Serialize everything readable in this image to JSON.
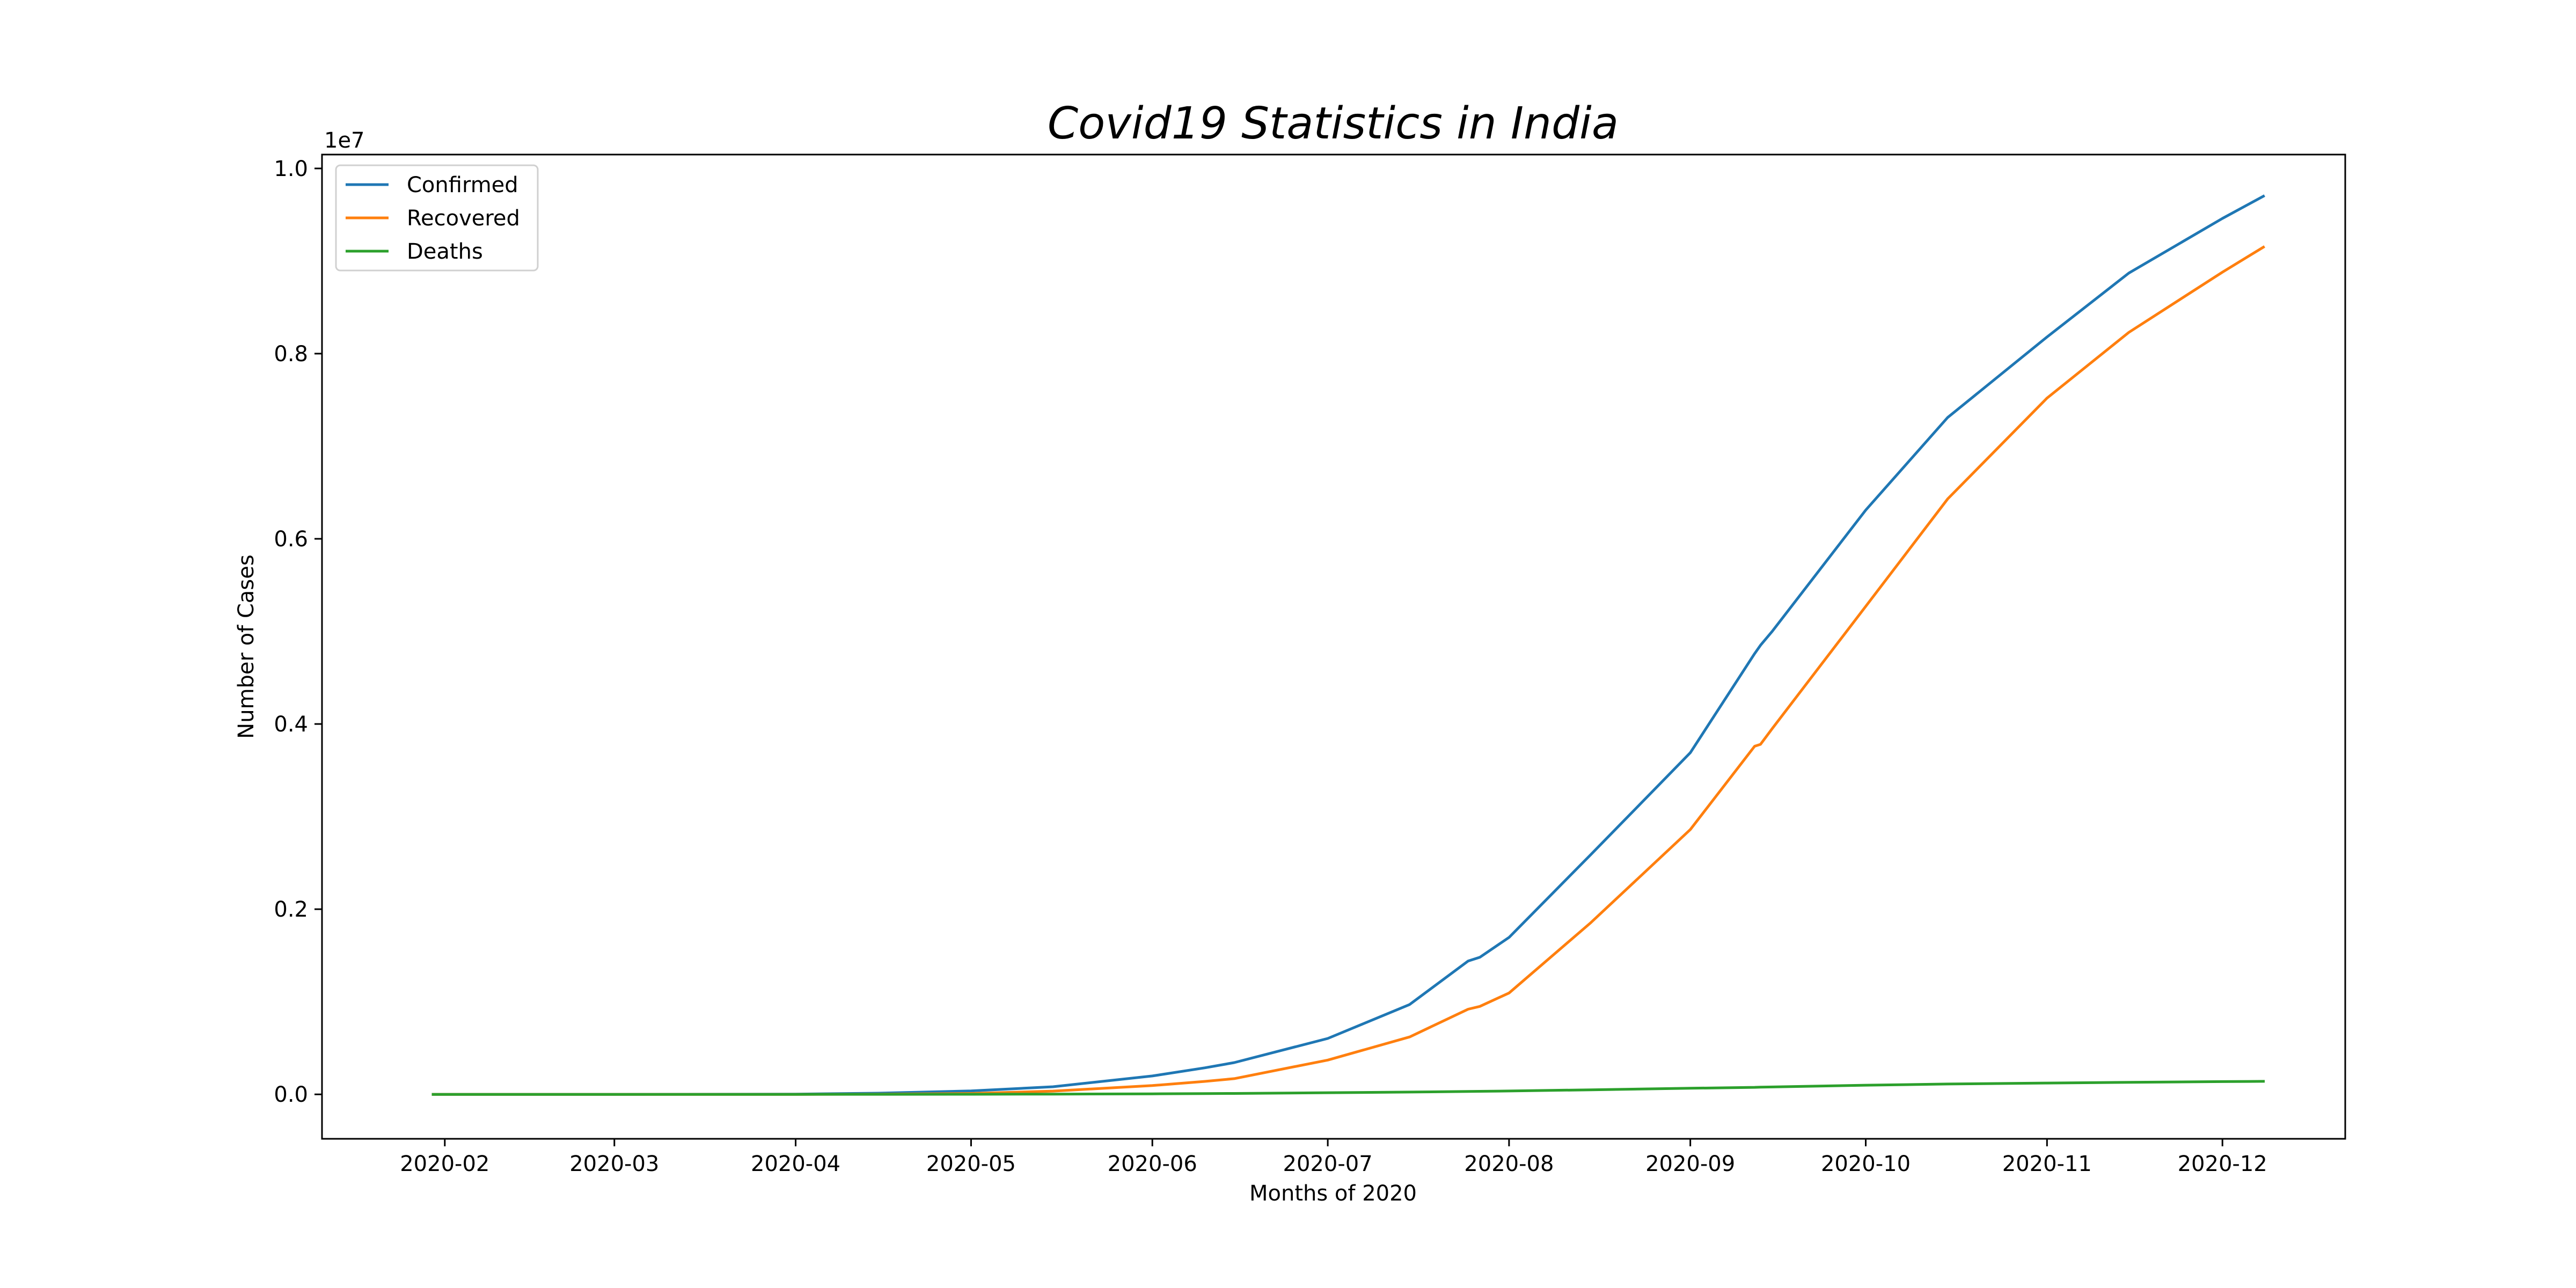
{
  "chart_data": {
    "type": "line",
    "title": "Covid19 Statistics in India",
    "xlabel": "Months of 2020",
    "ylabel": "Number of Cases",
    "y_offset_label": "1e7",
    "y_scale": 10000000,
    "x_tick_labels": [
      "2020-02",
      "2020-03",
      "2020-04",
      "2020-05",
      "2020-06",
      "2020-07",
      "2020-08",
      "2020-09",
      "2020-10",
      "2020-11",
      "2020-12"
    ],
    "x_ticks": [
      "2020-02-01",
      "2020-03-01",
      "2020-04-01",
      "2020-05-01",
      "2020-06-01",
      "2020-07-01",
      "2020-08-01",
      "2020-09-01",
      "2020-10-01",
      "2020-11-01",
      "2020-12-01"
    ],
    "y_tick_labels": [
      "0.0",
      "0.2",
      "0.4",
      "0.6",
      "0.8",
      "1.0"
    ],
    "y_ticks": [
      0,
      2000000,
      4000000,
      6000000,
      8000000,
      10000000
    ],
    "xlim": [
      "2020-01-11",
      "2020-12-22"
    ],
    "ylim": [
      -480000,
      10150000
    ],
    "grid": false,
    "legend_position": "top-left",
    "x": [
      "2020-01-30",
      "2020-03-01",
      "2020-04-01",
      "2020-04-15",
      "2020-05-01",
      "2020-05-15",
      "2020-06-01",
      "2020-06-10",
      "2020-06-15",
      "2020-07-01",
      "2020-07-15",
      "2020-07-25",
      "2020-07-27",
      "2020-08-01",
      "2020-08-15",
      "2020-09-01",
      "2020-09-12",
      "2020-09-13",
      "2020-09-15",
      "2020-10-01",
      "2020-10-15",
      "2020-11-01",
      "2020-11-15",
      "2020-12-01",
      "2020-12-08"
    ],
    "series": [
      {
        "name": "Confirmed",
        "color": "#1f77b4",
        "values": [
          1,
          3,
          1998,
          12380,
          37257,
          82000,
          198706,
          287000,
          343000,
          604000,
          970000,
          1440000,
          1480000,
          1695000,
          2590000,
          3690000,
          4760000,
          4850000,
          5000000,
          6310000,
          7310000,
          8180000,
          8870000,
          9460000,
          9700000
        ]
      },
      {
        "name": "Recovered",
        "color": "#ff7f0e",
        "values": [
          0,
          0,
          150,
          1500,
          10000,
          35000,
          95000,
          140000,
          170000,
          370000,
          620000,
          920000,
          950000,
          1095000,
          1855000,
          2860000,
          3760000,
          3780000,
          3950000,
          5270000,
          6430000,
          7520000,
          8230000,
          8880000,
          9150000
        ]
      },
      {
        "name": "Deaths",
        "color": "#2ca02c",
        "values": [
          0,
          0,
          50,
          400,
          1200,
          2600,
          5600,
          8500,
          10000,
          17800,
          25000,
          32000,
          33000,
          36500,
          49000,
          66000,
          76000,
          78000,
          80000,
          99000,
          112000,
          122000,
          130000,
          138000,
          141000
        ]
      }
    ]
  }
}
